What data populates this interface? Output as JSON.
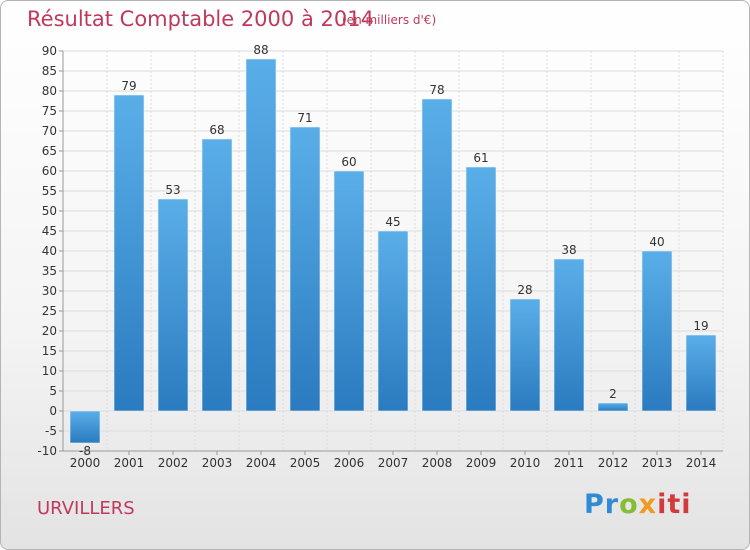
{
  "header": {
    "title": "Résultat Comptable 2000 à 2014",
    "subtitle": "(en milliers d'€)"
  },
  "footer": {
    "commune": "URVILLERS",
    "logo_parts": [
      "Pr",
      "o",
      "x",
      "iti"
    ]
  },
  "colors": {
    "title": "#c0395a",
    "bar_light": "#5aaee8",
    "bar_dark": "#2a7bbf",
    "grid": "#dcdcdc",
    "axis": "#999999"
  },
  "chart_data": {
    "type": "bar",
    "title": "Résultat Comptable 2000 à 2014",
    "ylabel": "(en milliers d'€)",
    "xlabel": "",
    "categories": [
      "2000",
      "2001",
      "2002",
      "2003",
      "2004",
      "2005",
      "2006",
      "2007",
      "2008",
      "2009",
      "2010",
      "2011",
      "2012",
      "2013",
      "2014"
    ],
    "values": [
      -8,
      79,
      53,
      68,
      88,
      71,
      60,
      45,
      78,
      61,
      28,
      38,
      2,
      40,
      19
    ],
    "ylim": [
      -10,
      90
    ],
    "ytick_step": 5,
    "grid": true
  }
}
